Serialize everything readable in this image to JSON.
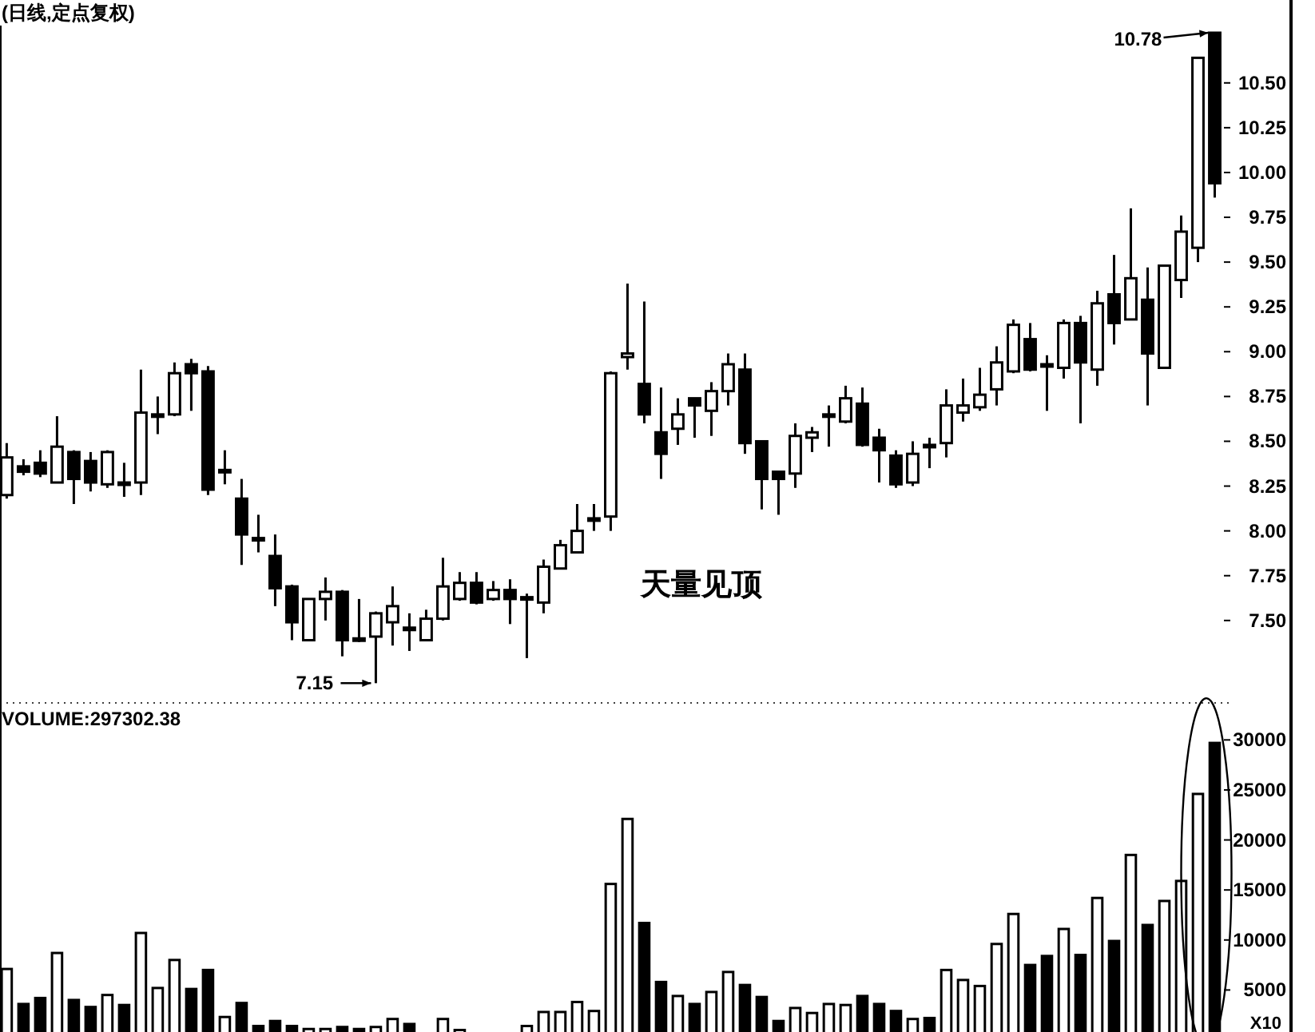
{
  "chart_data": [
    {
      "type": "candlestick",
      "title": "(日线,定点复权)",
      "color": "#000000",
      "tick_labels": "y",
      "categories": [
        null,
        null,
        null,
        null,
        null,
        null,
        null,
        null,
        null,
        null,
        null,
        null,
        null,
        null,
        null,
        null,
        null,
        null,
        null,
        null,
        null,
        null,
        null,
        null,
        null,
        null,
        null,
        null,
        null,
        null,
        null,
        null,
        null,
        null,
        null,
        null,
        null,
        null,
        null,
        null,
        null,
        null,
        null,
        null,
        null,
        null,
        null,
        null,
        null,
        null,
        null,
        null,
        null,
        null,
        null,
        null,
        null,
        null,
        null,
        null,
        null,
        null,
        null,
        null,
        null,
        null,
        null,
        null,
        null,
        null,
        null,
        null,
        null
      ],
      "ohlc": [
        [
          8.2,
          8.49,
          8.18,
          8.41
        ],
        [
          8.36,
          8.4,
          8.31,
          8.33
        ],
        [
          8.38,
          8.45,
          8.3,
          8.32
        ],
        [
          8.27,
          8.64,
          8.27,
          8.47
        ],
        [
          8.44,
          8.45,
          8.15,
          8.29
        ],
        [
          8.39,
          8.44,
          8.22,
          8.27
        ],
        [
          8.26,
          8.45,
          8.24,
          8.44
        ],
        [
          8.27,
          8.38,
          8.19,
          8.26
        ],
        [
          8.27,
          8.9,
          8.2,
          8.66
        ],
        [
          8.64,
          8.75,
          8.54,
          8.65
        ],
        [
          8.65,
          8.94,
          8.64,
          8.88
        ],
        [
          8.93,
          8.96,
          8.67,
          8.88
        ],
        [
          8.89,
          8.92,
          8.2,
          8.23
        ],
        [
          8.33,
          8.45,
          8.26,
          8.34
        ],
        [
          8.18,
          8.29,
          7.81,
          7.98
        ],
        [
          7.96,
          8.09,
          7.88,
          7.95
        ],
        [
          7.86,
          7.98,
          7.58,
          7.68
        ],
        [
          7.69,
          7.7,
          7.39,
          7.49
        ],
        [
          7.39,
          7.62,
          7.39,
          7.62
        ],
        [
          7.62,
          7.74,
          7.5,
          7.66
        ],
        [
          7.66,
          7.67,
          7.3,
          7.39
        ],
        [
          7.4,
          7.62,
          7.38,
          7.39
        ],
        [
          7.41,
          7.55,
          7.15,
          7.54
        ],
        [
          7.49,
          7.69,
          7.36,
          7.58
        ],
        [
          7.46,
          7.54,
          7.33,
          7.45
        ],
        [
          7.39,
          7.56,
          7.39,
          7.51
        ],
        [
          7.51,
          7.85,
          7.5,
          7.69
        ],
        [
          7.62,
          7.77,
          7.61,
          7.71
        ],
        [
          7.71,
          7.77,
          7.59,
          7.6
        ],
        [
          7.62,
          7.72,
          7.61,
          7.67
        ],
        [
          7.67,
          7.73,
          7.48,
          7.62
        ],
        [
          7.62,
          7.65,
          7.29,
          7.63
        ],
        [
          7.6,
          7.84,
          7.54,
          7.8
        ],
        [
          7.79,
          7.95,
          7.79,
          7.92
        ],
        [
          7.88,
          8.15,
          7.88,
          8.0
        ],
        [
          8.06,
          8.15,
          8.0,
          8.07
        ],
        [
          8.08,
          8.89,
          8.0,
          8.88
        ],
        [
          8.97,
          9.38,
          8.9,
          8.99
        ],
        [
          8.82,
          9.28,
          8.6,
          8.65
        ],
        [
          8.55,
          8.8,
          8.29,
          8.43
        ],
        [
          8.57,
          8.74,
          8.48,
          8.65
        ],
        [
          8.74,
          8.74,
          8.52,
          8.7
        ],
        [
          8.67,
          8.83,
          8.53,
          8.78
        ],
        [
          8.78,
          8.99,
          8.7,
          8.93
        ],
        [
          8.9,
          8.99,
          8.43,
          8.49
        ],
        [
          8.5,
          8.5,
          8.12,
          8.29
        ],
        [
          8.33,
          8.33,
          8.09,
          8.29
        ],
        [
          8.32,
          8.6,
          8.24,
          8.53
        ],
        [
          8.52,
          8.58,
          8.44,
          8.55
        ],
        [
          8.64,
          8.7,
          8.47,
          8.65
        ],
        [
          8.61,
          8.81,
          8.6,
          8.74
        ],
        [
          8.71,
          8.8,
          8.47,
          8.48
        ],
        [
          8.52,
          8.57,
          8.27,
          8.45
        ],
        [
          8.42,
          8.45,
          8.24,
          8.26
        ],
        [
          8.27,
          8.5,
          8.25,
          8.43
        ],
        [
          8.48,
          8.52,
          8.35,
          8.47
        ],
        [
          8.49,
          8.79,
          8.41,
          8.7
        ],
        [
          8.66,
          8.85,
          8.61,
          8.7
        ],
        [
          8.69,
          8.91,
          8.67,
          8.76
        ],
        [
          8.79,
          9.03,
          8.7,
          8.94
        ],
        [
          8.89,
          9.18,
          8.88,
          9.15
        ],
        [
          9.07,
          9.16,
          8.89,
          8.9
        ],
        [
          8.93,
          8.98,
          8.67,
          8.92
        ],
        [
          8.91,
          9.18,
          8.85,
          9.16
        ],
        [
          9.16,
          9.2,
          8.6,
          8.94
        ],
        [
          8.9,
          9.34,
          8.81,
          9.27
        ],
        [
          9.32,
          9.54,
          9.04,
          9.16
        ],
        [
          9.18,
          9.8,
          9.18,
          9.41
        ],
        [
          9.29,
          9.47,
          8.7,
          8.99
        ],
        [
          8.91,
          9.48,
          8.91,
          9.48
        ],
        [
          9.4,
          9.76,
          9.3,
          9.67
        ],
        [
          9.58,
          10.64,
          9.5,
          10.64
        ],
        [
          10.78,
          10.78,
          9.86,
          9.94
        ]
      ],
      "ylim": [
        7.04,
        10.82
      ],
      "yticks": [
        {
          "value": 7.5,
          "label": "7.50"
        },
        {
          "value": 7.75,
          "label": "7.75"
        },
        {
          "value": 8,
          "label": "8.00"
        },
        {
          "value": 8.25,
          "label": "8.25"
        },
        {
          "value": 8.5,
          "label": "8.50"
        },
        {
          "value": 8.75,
          "label": "8.75"
        },
        {
          "value": 9,
          "label": "9.00"
        },
        {
          "value": 9.25,
          "label": "9.25"
        },
        {
          "value": 9.5,
          "label": "9.50"
        },
        {
          "value": 9.75,
          "label": "9.75"
        },
        {
          "value": 10,
          "label": "10.00"
        },
        {
          "value": 10.25,
          "label": "10.25"
        },
        {
          "value": 10.5,
          "label": "10.50"
        }
      ],
      "annotations": [
        "天量见顶",
        "7.15",
        "10.78"
      ]
    },
    {
      "type": "bar",
      "title": "VOLUME:297302.38",
      "tick_labels": "y",
      "categories": [
        null,
        null,
        null,
        null,
        null,
        null,
        null,
        null,
        null,
        null,
        null,
        null,
        null,
        null,
        null,
        null,
        null,
        null,
        null,
        null,
        null,
        null,
        null,
        null,
        null,
        null,
        null,
        null,
        null,
        null,
        null,
        null,
        null,
        null,
        null,
        null,
        null,
        null,
        null,
        null,
        null,
        null,
        null,
        null,
        null,
        null,
        null,
        null,
        null,
        null,
        null,
        null,
        null,
        null,
        null,
        null,
        null,
        null,
        null,
        null,
        null,
        null,
        null,
        null,
        null,
        null,
        null,
        null,
        null,
        null,
        null,
        null,
        null
      ],
      "values": [
        7100,
        3600,
        4200,
        8700,
        4000,
        3300,
        4500,
        3500,
        10700,
        5200,
        8000,
        5100,
        7000,
        2300,
        3700,
        1400,
        1900,
        1400,
        1100,
        1100,
        1300,
        1100,
        1300,
        2100,
        1600,
        null,
        2100,
        1000,
        null,
        null,
        null,
        1400,
        2800,
        2800,
        3800,
        2900,
        15600,
        22100,
        11700,
        5800,
        4400,
        3600,
        4800,
        6800,
        5500,
        4300,
        1900,
        3200,
        2700,
        3600,
        3500,
        4400,
        3600,
        2900,
        2100,
        2200,
        7000,
        6000,
        5400,
        9600,
        12600,
        7500,
        8400,
        11100,
        8500,
        14200,
        9900,
        18500,
        11500,
        13900,
        15900,
        24600,
        29700
      ],
      "colors": [
        "#ffffff",
        "#000000",
        "#000000",
        "#ffffff",
        "#000000",
        "#000000",
        "#ffffff",
        "#000000",
        "#ffffff",
        "#ffffff",
        "#ffffff",
        "#000000",
        "#000000",
        "#ffffff",
        "#000000",
        "#000000",
        "#000000",
        "#000000",
        "#ffffff",
        "#ffffff",
        "#000000",
        "#000000",
        "#ffffff",
        "#ffffff",
        "#000000",
        null,
        "#ffffff",
        "#ffffff",
        null,
        null,
        null,
        "#ffffff",
        "#ffffff",
        "#ffffff",
        "#ffffff",
        "#ffffff",
        "#ffffff",
        "#ffffff",
        "#000000",
        "#000000",
        "#ffffff",
        "#000000",
        "#ffffff",
        "#ffffff",
        "#000000",
        "#000000",
        "#000000",
        "#ffffff",
        "#ffffff",
        "#ffffff",
        "#ffffff",
        "#000000",
        "#000000",
        "#000000",
        "#ffffff",
        "#000000",
        "#ffffff",
        "#ffffff",
        "#ffffff",
        "#ffffff",
        "#ffffff",
        "#000000",
        "#000000",
        "#ffffff",
        "#000000",
        "#ffffff",
        "#000000",
        "#ffffff",
        "#000000",
        "#ffffff",
        "#ffffff",
        "#ffffff",
        "#000000"
      ],
      "ylim": [
        800,
        33700
      ],
      "yticks": [
        5000,
        10000,
        15000,
        20000,
        25000,
        30000
      ],
      "annotations": [
        "X10"
      ]
    }
  ]
}
